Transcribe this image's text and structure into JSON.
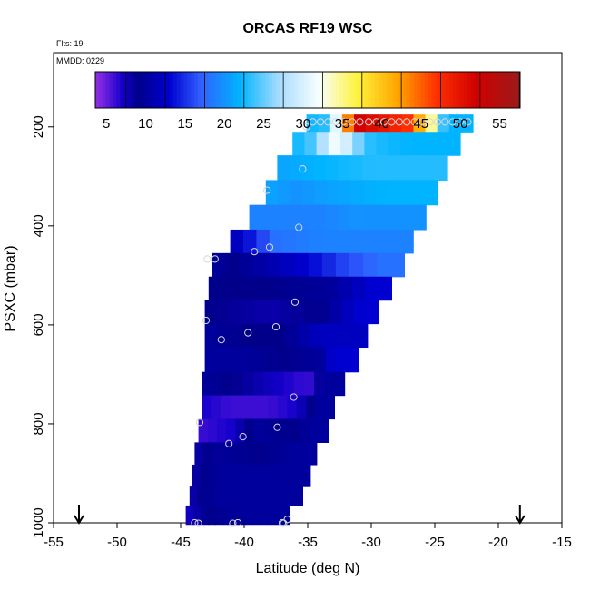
{
  "chart_data": {
    "type": "heatmap",
    "title": "ORCAS RF19 WSC",
    "info_flts": "Flts: 19",
    "info_mmdd": "MMDD: 0229",
    "xlabel": "Latitude (deg N)",
    "ylabel": "PSXC (mbar)",
    "xlim": [
      -55,
      -15
    ],
    "ylim": [
      1000,
      50
    ],
    "y_reversed": true,
    "grid": false,
    "xticks": [
      -55,
      -50,
      -45,
      -40,
      -35,
      -30,
      -25,
      -20,
      -15
    ],
    "yticks": [
      200,
      400,
      600,
      800,
      1000
    ],
    "colorbar": {
      "min": 3.6,
      "max": 57.6,
      "ticks": [
        5,
        10,
        15,
        20,
        25,
        30,
        35,
        40,
        45,
        50,
        55
      ],
      "placement": "top-inside"
    },
    "arrows_latitude": [
      -53,
      -18.3
    ],
    "bands": [
      {
        "p": 190,
        "x0": -35.1,
        "x1": -22,
        "segs": [
          [
            -35.1,
            23
          ],
          [
            -34,
            22
          ],
          [
            -33.2,
            25
          ],
          [
            -32.5,
            34
          ],
          [
            -31.8,
            44
          ],
          [
            -31,
            52
          ],
          [
            -27,
            47
          ],
          [
            -26,
            40
          ],
          [
            -25.3,
            35
          ],
          [
            -24.5,
            24
          ],
          [
            -23.5,
            22
          ]
        ]
      },
      {
        "p": 230,
        "x0": -36.2,
        "x1": -23,
        "segs": [
          [
            -36.2,
            22
          ],
          [
            -34.8,
            24
          ],
          [
            -33.5,
            29
          ],
          [
            -32.5,
            33
          ],
          [
            -31.5,
            27
          ],
          [
            -30,
            23
          ],
          [
            -27,
            22
          ]
        ]
      },
      {
        "p": 285,
        "x0": -37.4,
        "x1": -24,
        "segs": [
          [
            -37.4,
            21
          ],
          [
            -34,
            22
          ],
          [
            -30,
            23
          ],
          [
            -27,
            23
          ]
        ]
      },
      {
        "p": 330,
        "x0": -38.3,
        "x1": -24.8,
        "segs": [
          [
            -38.3,
            21
          ],
          [
            -36,
            20
          ],
          [
            -33,
            21
          ],
          [
            -29,
            22
          ]
        ]
      },
      {
        "p": 385,
        "x0": -39.6,
        "x1": -25.7,
        "segs": [
          [
            -39.6,
            19
          ],
          [
            -37,
            19
          ],
          [
            -34,
            19
          ],
          [
            -31,
            20
          ],
          [
            -28,
            20
          ]
        ]
      },
      {
        "p": 430,
        "x0": -41.1,
        "x1": -26.7,
        "segs": [
          [
            -41.1,
            11
          ],
          [
            -39.5,
            14
          ],
          [
            -37.5,
            18
          ],
          [
            -34,
            19
          ],
          [
            -30,
            19
          ]
        ]
      },
      {
        "p": 480,
        "x0": -42.5,
        "x1": -27.4,
        "segs": [
          [
            -42.5,
            10
          ],
          [
            -41,
            9
          ],
          [
            -38,
            11
          ],
          [
            -35,
            13
          ],
          [
            -32,
            16
          ],
          [
            -29,
            18
          ]
        ]
      },
      {
        "p": 525,
        "x0": -42.8,
        "x1": -28.4,
        "segs": [
          [
            -42.8,
            9
          ],
          [
            -38,
            9
          ],
          [
            -33,
            10
          ],
          [
            -30,
            13
          ]
        ]
      },
      {
        "p": 575,
        "x0": -43.1,
        "x1": -29.4,
        "segs": [
          [
            -43.1,
            9
          ],
          [
            -38,
            8
          ],
          [
            -34,
            9
          ],
          [
            -31,
            13
          ]
        ]
      },
      {
        "p": 620,
        "x0": -43.1,
        "x1": -30.3,
        "segs": [
          [
            -43.1,
            10
          ],
          [
            -39.5,
            9
          ],
          [
            -37,
            9
          ],
          [
            -34,
            12
          ]
        ]
      },
      {
        "p": 670,
        "x0": -43.1,
        "x1": -31,
        "segs": [
          [
            -43.1,
            10
          ],
          [
            -40,
            10
          ],
          [
            -37,
            9
          ],
          [
            -34,
            10
          ],
          [
            -33,
            13
          ]
        ]
      },
      {
        "p": 720,
        "x0": -43.3,
        "x1": -32.1,
        "segs": [
          [
            -43.3,
            10
          ],
          [
            -41,
            9
          ],
          [
            -39,
            8
          ],
          [
            -37,
            7
          ],
          [
            -35,
            6
          ],
          [
            -33.5,
            10
          ]
        ]
      },
      {
        "p": 765,
        "x0": -43.3,
        "x1": -32.9,
        "segs": [
          [
            -43.3,
            7
          ],
          [
            -41,
            6
          ],
          [
            -38,
            6
          ],
          [
            -36,
            7
          ],
          [
            -34,
            10
          ]
        ]
      },
      {
        "p": 815,
        "x0": -43.6,
        "x1": -33.4,
        "segs": [
          [
            -43.6,
            6
          ],
          [
            -41,
            7
          ],
          [
            -39,
            10
          ],
          [
            -36,
            9
          ],
          [
            -35,
            10
          ]
        ]
      },
      {
        "p": 860,
        "x0": -43.9,
        "x1": -34.3,
        "segs": [
          [
            -43.9,
            8
          ],
          [
            -42,
            10
          ],
          [
            -39,
            9
          ],
          [
            -36,
            10
          ]
        ]
      },
      {
        "p": 905,
        "x0": -44.1,
        "x1": -34.8,
        "segs": [
          [
            -44.1,
            8
          ],
          [
            -42,
            10
          ],
          [
            -39,
            10
          ]
        ]
      },
      {
        "p": 945,
        "x0": -44.3,
        "x1": -35.4,
        "segs": [
          [
            -44.3,
            8
          ],
          [
            -42,
            10
          ],
          [
            -39,
            10
          ]
        ]
      },
      {
        "p": 985,
        "x0": -44.6,
        "x1": -36.4,
        "segs": [
          [
            -44.6,
            7
          ],
          [
            -43,
            9
          ],
          [
            -40,
            10
          ]
        ]
      }
    ],
    "points": [
      {
        "lat": -34.6,
        "p": 190
      },
      {
        "lat": -34,
        "p": 190
      },
      {
        "lat": -33.4,
        "p": 190
      },
      {
        "lat": -32.8,
        "p": 190
      },
      {
        "lat": -32.2,
        "p": 190
      },
      {
        "lat": -31.5,
        "p": 190
      },
      {
        "lat": -30.9,
        "p": 190
      },
      {
        "lat": -30.2,
        "p": 190
      },
      {
        "lat": -29.6,
        "p": 190
      },
      {
        "lat": -29,
        "p": 190
      },
      {
        "lat": -28.4,
        "p": 190
      },
      {
        "lat": -27.8,
        "p": 190
      },
      {
        "lat": -27.2,
        "p": 190
      },
      {
        "lat": -26.6,
        "p": 190
      },
      {
        "lat": -26,
        "p": 190
      },
      {
        "lat": -25.4,
        "p": 190
      },
      {
        "lat": -24.8,
        "p": 190
      },
      {
        "lat": -24.2,
        "p": 190
      },
      {
        "lat": -23.6,
        "p": 190
      },
      {
        "lat": -23,
        "p": 190
      },
      {
        "lat": -22.4,
        "p": 190
      },
      {
        "lat": -35.1,
        "p": 200
      },
      {
        "lat": -35.4,
        "p": 285
      },
      {
        "lat": -38.2,
        "p": 328
      },
      {
        "lat": -35.7,
        "p": 403
      },
      {
        "lat": -38,
        "p": 443
      },
      {
        "lat": -39.2,
        "p": 452
      },
      {
        "lat": -42.3,
        "p": 467
      },
      {
        "lat": -42.9,
        "p": 467
      },
      {
        "lat": -36,
        "p": 554
      },
      {
        "lat": -43,
        "p": 591
      },
      {
        "lat": -39.7,
        "p": 616
      },
      {
        "lat": -37.5,
        "p": 604
      },
      {
        "lat": -41.8,
        "p": 630
      },
      {
        "lat": -36.1,
        "p": 746
      },
      {
        "lat": -43.5,
        "p": 797
      },
      {
        "lat": -37.4,
        "p": 807
      },
      {
        "lat": -40.1,
        "p": 826
      },
      {
        "lat": -41.2,
        "p": 840
      },
      {
        "lat": -36.6,
        "p": 993
      },
      {
        "lat": -36.9,
        "p": 1001
      },
      {
        "lat": -37,
        "p": 1000
      },
      {
        "lat": -40.5,
        "p": 1000
      },
      {
        "lat": -40.9,
        "p": 1001
      },
      {
        "lat": -43.6,
        "p": 1001
      },
      {
        "lat": -43.9,
        "p": 1000
      }
    ]
  }
}
